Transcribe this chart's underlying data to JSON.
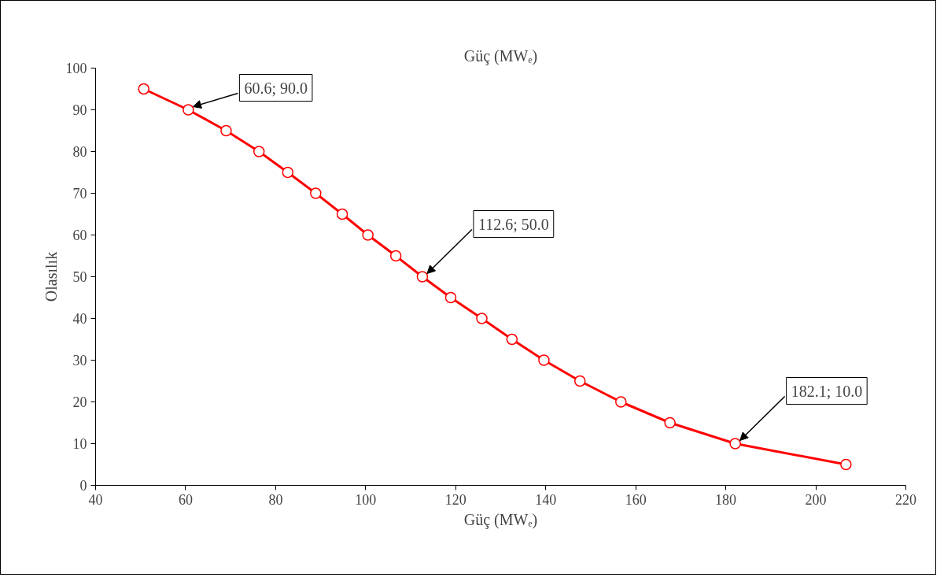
{
  "chart_data": {
    "type": "line",
    "title": "Güç (MWₑ)",
    "xlabel": "Güç (MWₑ)",
    "ylabel": "Olasılık",
    "x": [
      50.7,
      60.6,
      69.0,
      76.3,
      82.7,
      88.9,
      94.8,
      100.5,
      106.7,
      112.6,
      118.9,
      125.8,
      132.5,
      139.6,
      147.6,
      156.7,
      167.6,
      182.1,
      206.7
    ],
    "series": [
      {
        "color": "#ff0000",
        "values": [
          95,
          90,
          85,
          80,
          75,
          70,
          65,
          60,
          55,
          50,
          45,
          40,
          35,
          30,
          25,
          20,
          15,
          10,
          5
        ]
      }
    ],
    "xlim": [
      40,
      220
    ],
    "xticks": [
      40,
      60,
      80,
      100,
      120,
      140,
      160,
      180,
      200,
      220
    ],
    "ylim": [
      0,
      100
    ],
    "yticks": [
      0,
      10,
      20,
      30,
      40,
      50,
      60,
      70,
      80,
      90,
      100
    ],
    "marker": "circle",
    "grid": false,
    "annotations": [
      {
        "text": "60.6; 90.0",
        "x": 60.6,
        "y": 90
      },
      {
        "text": "112.6; 50.0",
        "x": 112.6,
        "y": 50
      },
      {
        "text": "182.1; 10.0",
        "x": 182.1,
        "y": 10
      }
    ]
  }
}
